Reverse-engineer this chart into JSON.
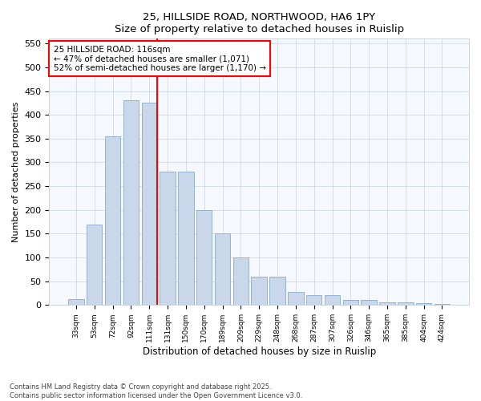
{
  "title1": "25, HILLSIDE ROAD, NORTHWOOD, HA6 1PY",
  "title2": "Size of property relative to detached houses in Ruislip",
  "xlabel": "Distribution of detached houses by size in Ruislip",
  "ylabel": "Number of detached properties",
  "categories": [
    "33sqm",
    "53sqm",
    "72sqm",
    "92sqm",
    "111sqm",
    "131sqm",
    "150sqm",
    "170sqm",
    "189sqm",
    "209sqm",
    "229sqm",
    "248sqm",
    "268sqm",
    "287sqm",
    "307sqm",
    "326sqm",
    "346sqm",
    "365sqm",
    "385sqm",
    "404sqm",
    "424sqm"
  ],
  "values": [
    12,
    170,
    355,
    430,
    425,
    280,
    280,
    200,
    150,
    100,
    60,
    60,
    28,
    20,
    20,
    10,
    10,
    6,
    5,
    4,
    3
  ],
  "bar_color": "#c8d8ea",
  "bar_edge_color": "#8aaac8",
  "vline_x_index": 4,
  "vline_color": "red",
  "annotation_text": "25 HILLSIDE ROAD: 116sqm\n← 47% of detached houses are smaller (1,071)\n52% of semi-detached houses are larger (1,170) →",
  "annotation_box_color": "white",
  "annotation_box_edge_color": "red",
  "ylim": [
    0,
    560
  ],
  "yticks": [
    0,
    50,
    100,
    150,
    200,
    250,
    300,
    350,
    400,
    450,
    500,
    550
  ],
  "footnote": "Contains HM Land Registry data © Crown copyright and database right 2025.\nContains public sector information licensed under the Open Government Licence v3.0.",
  "bg_color": "#ffffff",
  "plot_bg_color": "#f5f8fd",
  "grid_color": "#c8d4e0"
}
